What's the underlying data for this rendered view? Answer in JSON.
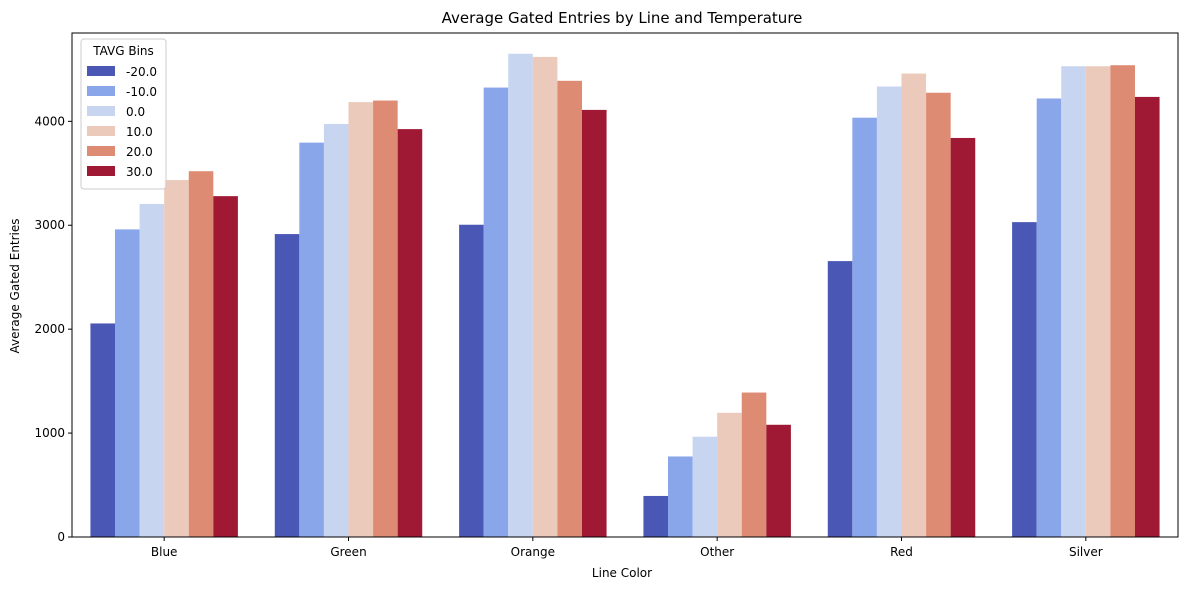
{
  "chart_data": {
    "type": "bar",
    "title": "Average Gated Entries by Line and Temperature",
    "xlabel": "Line Color",
    "ylabel": "Average Gated Entries",
    "ylim": [
      0,
      4850
    ],
    "yticks": [
      0,
      1000,
      2000,
      3000,
      4000
    ],
    "grid": false,
    "legend": {
      "title": "TAVG Bins",
      "placement": "top-left"
    },
    "categories": [
      "Blue",
      "Green",
      "Orange",
      "Other",
      "Red",
      "Silver"
    ],
    "series": [
      {
        "name": "-20.0",
        "color": "#4a57b4",
        "values": [
          2055,
          2915,
          3005,
          395,
          2655,
          3030
        ]
      },
      {
        "name": "-10.0",
        "color": "#8aa6ea",
        "values": [
          2960,
          3795,
          4325,
          775,
          4035,
          4220
        ]
      },
      {
        "name": "0.0",
        "color": "#c7d5f0",
        "values": [
          3205,
          3975,
          4650,
          965,
          4335,
          4530
        ]
      },
      {
        "name": "10.0",
        "color": "#eccabb",
        "values": [
          3435,
          4185,
          4620,
          1195,
          4460,
          4530
        ]
      },
      {
        "name": "20.0",
        "color": "#de8b73",
        "values": [
          3520,
          4200,
          4390,
          1390,
          4275,
          4540
        ]
      },
      {
        "name": "30.0",
        "color": "#9f1935",
        "values": [
          3280,
          3925,
          4110,
          1080,
          3840,
          4235
        ]
      }
    ]
  }
}
